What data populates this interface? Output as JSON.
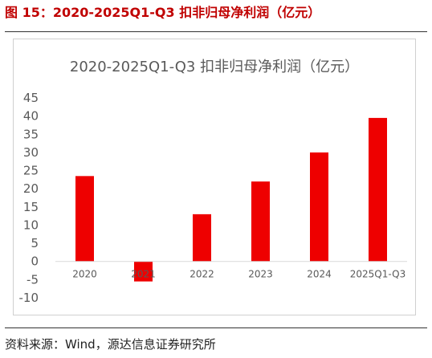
{
  "figure": {
    "label": "图 15：2020-2025Q1-Q3  扣非归母净利润（亿元）",
    "source": "资料来源：Wind，源达信息证券研究所"
  },
  "chart_data": {
    "type": "bar",
    "title": "2020-2025Q1-Q3 扣非归母净利润（亿元）",
    "categories": [
      "2020",
      "2021",
      "2022",
      "2023",
      "2024",
      "2025Q1-Q3"
    ],
    "series": [
      {
        "values": [
          23.5,
          -5.5,
          13.0,
          22.0,
          30.0,
          39.5
        ]
      }
    ],
    "xlabel": "",
    "ylabel": "",
    "ylim": [
      -10,
      45
    ],
    "yticks": [
      45,
      40,
      35,
      30,
      25,
      20,
      15,
      10,
      5,
      0,
      -5,
      -10
    ],
    "grid": false,
    "legend": "none",
    "bar_color": "#ee0000"
  }
}
